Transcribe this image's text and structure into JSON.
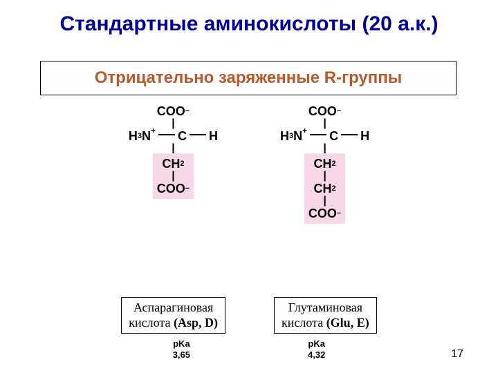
{
  "title": "Стандартные аминокислоты (20 а.к.)",
  "subtitle": "Отрицательно заряженные R-группы",
  "page_number": "17",
  "colors": {
    "title": "#000099",
    "subtitle": "#B55A2A",
    "rgroup_bg": "#F8D8E8",
    "box_bg": "#fdfdfd",
    "text": "#000000"
  },
  "molecules": [
    {
      "id": "asp",
      "name_line1": "Аспарагиновая",
      "name_line2": "кислота (Asp, D)",
      "pka_label": "pKa",
      "pka_value": "3,65",
      "backbone": {
        "top": "COO⁻",
        "left": "H₃N⁺",
        "center": "C",
        "right": "H"
      },
      "rgroup": [
        "CH₂",
        "COO⁻"
      ]
    },
    {
      "id": "glu",
      "name_line1": "Глутаминовая",
      "name_line2": "кислота (Glu, E)",
      "pka_label": "pKa",
      "pka_value": "4,32",
      "backbone": {
        "top": "COO⁻",
        "left": "H₃N⁺",
        "center": "C",
        "right": "H"
      },
      "rgroup": [
        "CH₂",
        "CH₂",
        "COO⁻"
      ]
    }
  ]
}
